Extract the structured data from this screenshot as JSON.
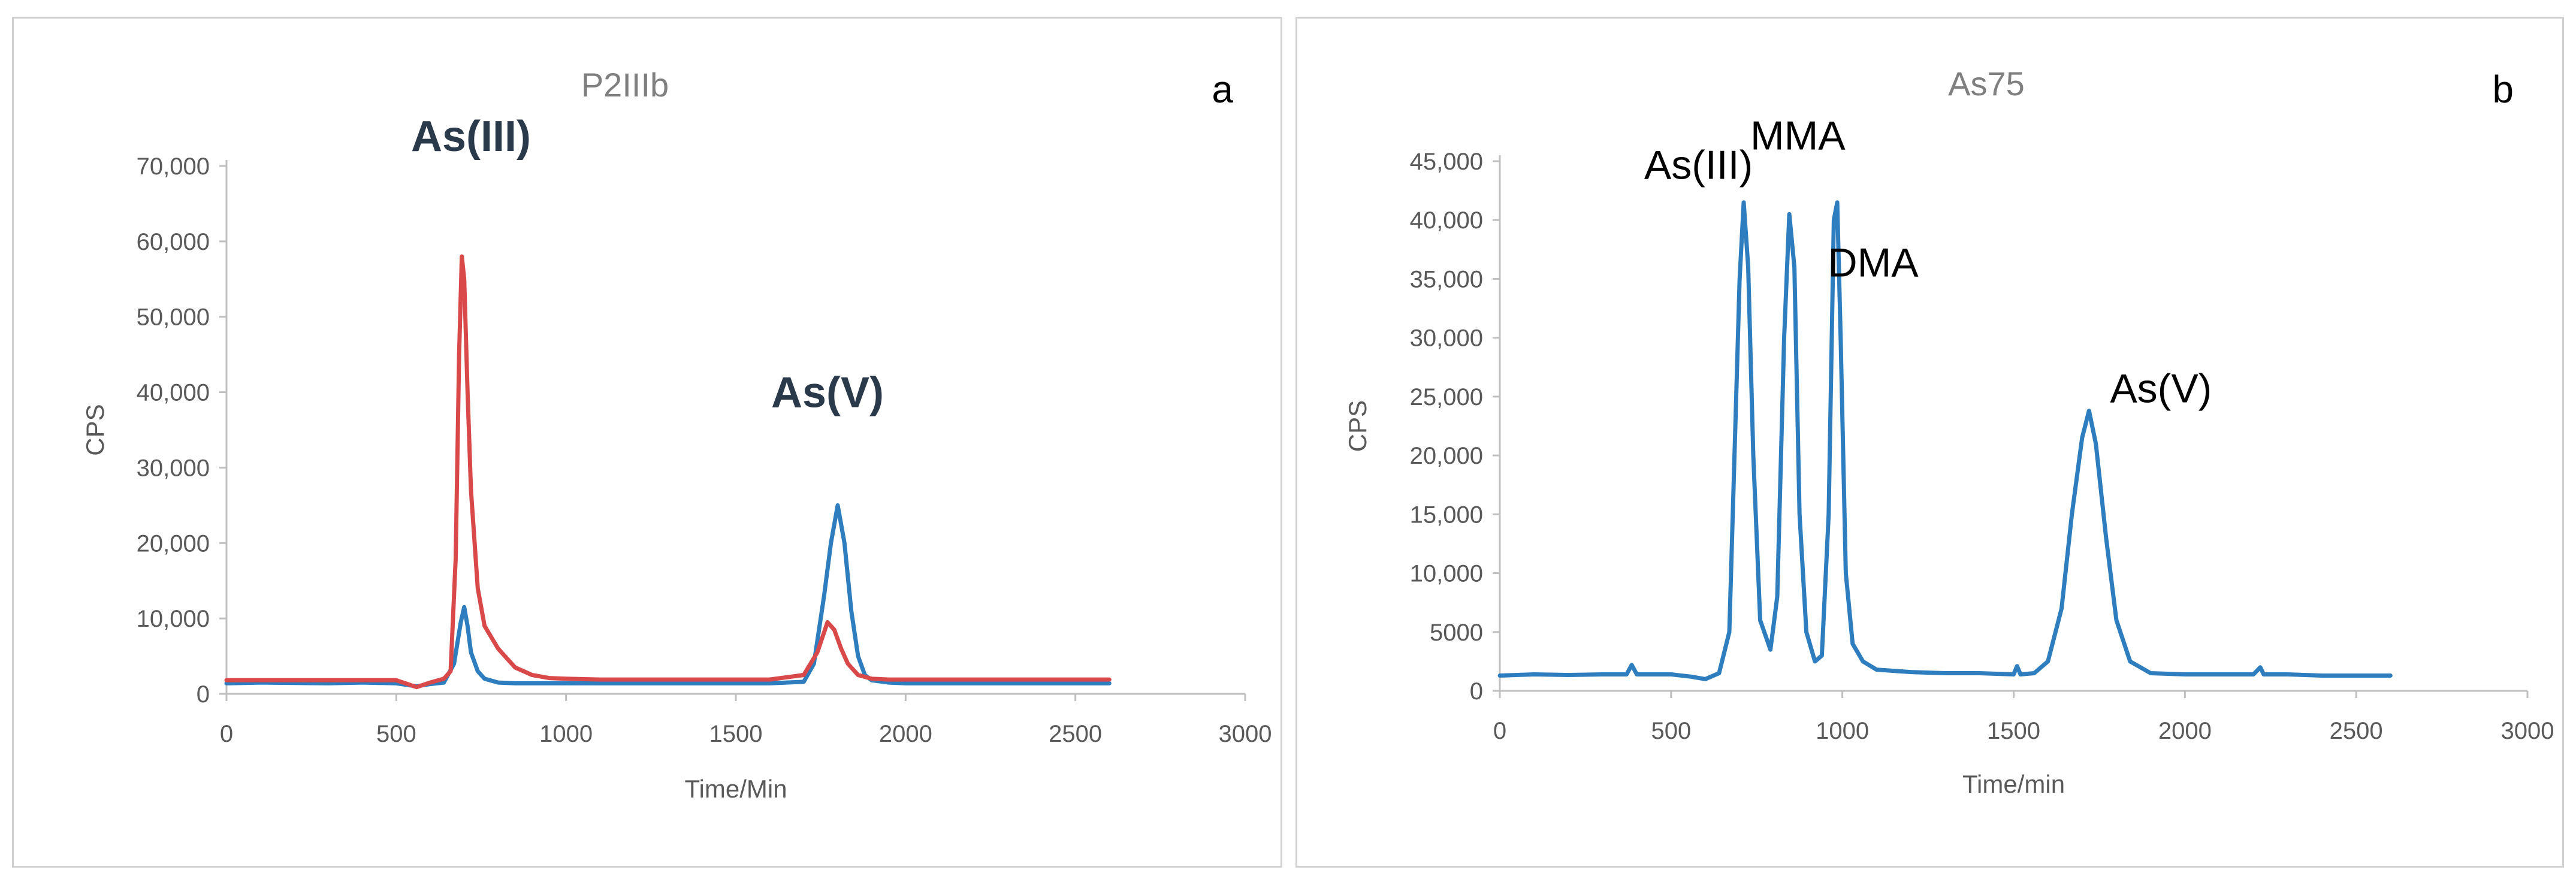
{
  "chart_data": [
    {
      "panel": "a",
      "type": "line",
      "title": "P2IIIb",
      "xlabel": "Time/Min",
      "ylabel": "CPS",
      "xlim": [
        0,
        3000
      ],
      "ylim": [
        0,
        70000
      ],
      "x_ticks": [
        "0",
        "500",
        "1000",
        "1500",
        "2000",
        "2500",
        "3000"
      ],
      "y_ticks": [
        "0",
        "10,000",
        "20,000",
        "30,000",
        "40,000",
        "50,000",
        "60,000",
        "70,000"
      ],
      "grid": false,
      "legend": "none",
      "annotations": [
        {
          "text": "As(III)",
          "x": 720,
          "y": 72000
        },
        {
          "text": "As(V)",
          "x": 1770,
          "y": 38000
        }
      ],
      "series": [
        {
          "color": "#2e7ebf",
          "x": [
            0,
            100,
            200,
            300,
            400,
            500,
            560,
            600,
            640,
            670,
            690,
            700,
            710,
            720,
            740,
            760,
            800,
            850,
            900,
            1000,
            1100,
            1200,
            1300,
            1400,
            1500,
            1600,
            1700,
            1730,
            1760,
            1780,
            1800,
            1820,
            1840,
            1860,
            1880,
            1900,
            1950,
            2000,
            2100,
            2200,
            2300,
            2400,
            2500,
            2600
          ],
          "y": [
            1400,
            1500,
            1450,
            1400,
            1500,
            1400,
            1000,
            1300,
            1500,
            4000,
            9500,
            11500,
            9000,
            5500,
            3000,
            2000,
            1500,
            1400,
            1400,
            1400,
            1400,
            1400,
            1400,
            1400,
            1400,
            1400,
            1600,
            4000,
            13000,
            20000,
            25000,
            20000,
            11000,
            5000,
            2500,
            1800,
            1500,
            1400,
            1400,
            1400,
            1400,
            1400,
            1400,
            1400
          ]
        },
        {
          "color": "#d9494a",
          "x": [
            0,
            100,
            200,
            300,
            400,
            500,
            560,
            600,
            640,
            660,
            675,
            685,
            693,
            700,
            710,
            720,
            740,
            760,
            800,
            850,
            900,
            950,
            1000,
            1100,
            1200,
            1300,
            1400,
            1500,
            1600,
            1700,
            1740,
            1770,
            1790,
            1810,
            1830,
            1860,
            1900,
            1950,
            2000,
            2100,
            2200,
            2300,
            2400,
            2500,
            2600
          ],
          "y": [
            1800,
            1800,
            1800,
            1800,
            1800,
            1800,
            900,
            1500,
            2000,
            3000,
            18000,
            45000,
            58000,
            55000,
            40000,
            27000,
            14000,
            9000,
            6000,
            3500,
            2500,
            2100,
            2000,
            1900,
            1900,
            1900,
            1900,
            1900,
            1900,
            2500,
            5500,
            9500,
            8500,
            6000,
            4000,
            2500,
            2000,
            1900,
            1900,
            1900,
            1900,
            1900,
            1900,
            1900,
            1900
          ]
        }
      ]
    },
    {
      "panel": "b",
      "type": "line",
      "title": "As75",
      "xlabel": "Time/min",
      "ylabel": "CPS",
      "xlim": [
        0,
        3000
      ],
      "ylim": [
        0,
        45000
      ],
      "x_ticks": [
        "0",
        "500",
        "1000",
        "1500",
        "2000",
        "2500",
        "3000"
      ],
      "y_ticks": [
        "0",
        "5000",
        "10,000",
        "15,000",
        "20,000",
        "25,000",
        "30,000",
        "35,000",
        "40,000",
        "45,000"
      ],
      "grid": false,
      "legend": "none",
      "annotations": [
        {
          "text": "As(III)",
          "x": 580,
          "y": 43500
        },
        {
          "text": "MMA",
          "x": 870,
          "y": 46000
        },
        {
          "text": "DMA",
          "x": 1090,
          "y": 35200
        },
        {
          "text": "As(V)",
          "x": 1930,
          "y": 24500
        }
      ],
      "series": [
        {
          "color": "#2e7ebf",
          "x": [
            0,
            100,
            200,
            300,
            370,
            385,
            400,
            500,
            560,
            600,
            640,
            670,
            690,
            700,
            712,
            725,
            740,
            760,
            790,
            810,
            830,
            845,
            860,
            875,
            895,
            920,
            940,
            960,
            975,
            985,
            995,
            1010,
            1030,
            1060,
            1100,
            1200,
            1300,
            1400,
            1500,
            1510,
            1520,
            1560,
            1600,
            1640,
            1670,
            1700,
            1720,
            1740,
            1770,
            1800,
            1840,
            1900,
            2000,
            2100,
            2200,
            2220,
            2230,
            2300,
            2400,
            2500,
            2600
          ],
          "y": [
            1300,
            1400,
            1350,
            1400,
            1400,
            2200,
            1400,
            1400,
            1200,
            1000,
            1500,
            5000,
            25000,
            35000,
            41500,
            36000,
            20000,
            6000,
            3500,
            8000,
            30000,
            40500,
            36000,
            15000,
            5000,
            2500,
            3000,
            15000,
            40000,
            41500,
            30000,
            10000,
            4000,
            2500,
            1800,
            1600,
            1500,
            1500,
            1400,
            2100,
            1400,
            1500,
            2500,
            7000,
            15000,
            21500,
            23800,
            21000,
            13000,
            6000,
            2500,
            1500,
            1400,
            1400,
            1400,
            2000,
            1400,
            1400,
            1300,
            1300,
            1300
          ]
        }
      ]
    }
  ]
}
